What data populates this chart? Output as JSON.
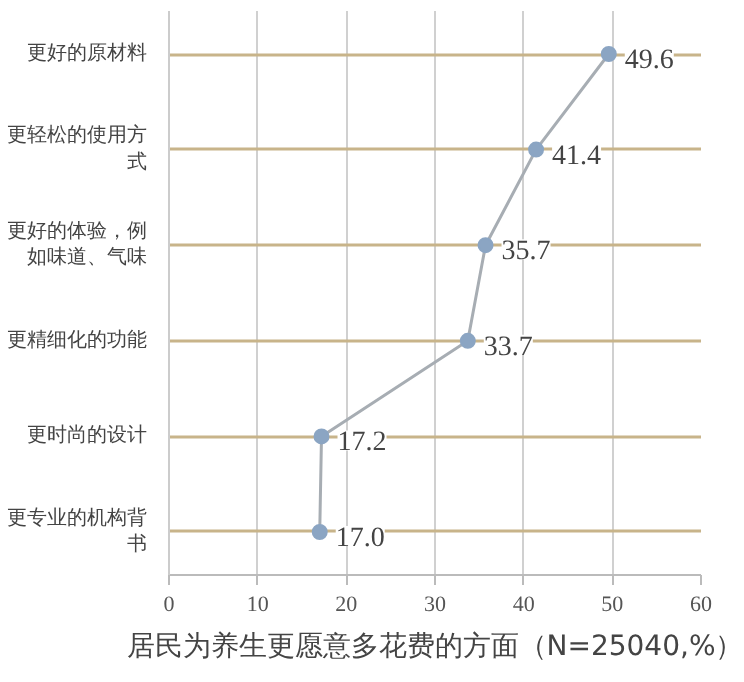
{
  "chart_data": {
    "type": "line",
    "orientation": "horizontal",
    "title": "居民为养生更愿意多花费的方面（N=25040,%）",
    "categories": [
      "更好的原材料",
      "更轻松的使用方式",
      "更好的体验，例如味道、气味",
      "更精细化的功能",
      "更时尚的设计",
      "更专业的机构背书"
    ],
    "series": [
      {
        "color": "#8ba5c3",
        "values": [
          49.6,
          41.4,
          35.7,
          33.7,
          17.2,
          17.0
        ],
        "value_labels": [
          "49.6",
          "41.4",
          "35.7",
          "33.7",
          "17.2",
          "17.0"
        ]
      }
    ],
    "xlim": [
      0,
      60
    ],
    "xticks": [
      0,
      10,
      20,
      30,
      40,
      50,
      60
    ],
    "grid": true,
    "marker": "circle"
  }
}
